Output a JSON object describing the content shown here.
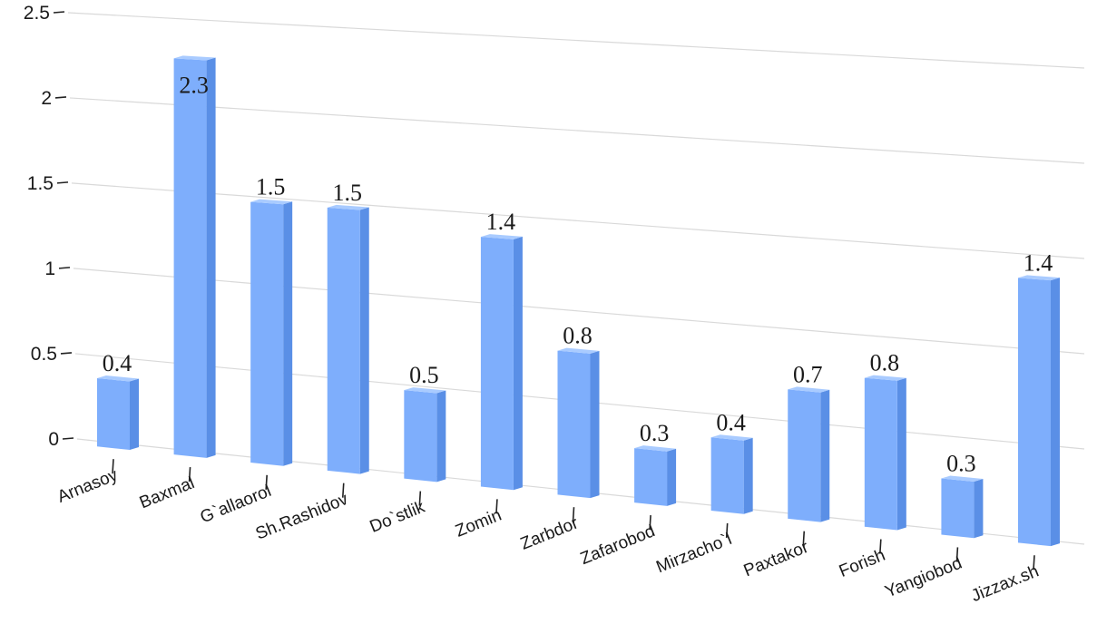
{
  "chart_data": {
    "type": "bar",
    "title": "",
    "xlabel": "",
    "ylabel": "",
    "ylim": [
      0,
      2.5
    ],
    "yticks": [
      "0",
      "0.5",
      "1",
      "1.5",
      "2",
      "2.5"
    ],
    "grid": true,
    "categories": [
      "Arnasoy",
      "Baxmal",
      "G`allaorol",
      "Sh.Rashidov",
      "Do`stlik",
      "Zomin",
      "Zarbdor",
      "Zafarobod",
      "Mirzacho`l",
      "Paxtakor",
      "Forish",
      "Yangiobod",
      "Jizzax.sh"
    ],
    "values": [
      0.4,
      2.3,
      1.5,
      1.5,
      0.5,
      1.4,
      0.8,
      0.3,
      0.4,
      0.7,
      0.8,
      0.3,
      1.4
    ],
    "data_labels": [
      "0.4",
      "2.3",
      "1.5",
      "1.5",
      "0.5",
      "1.4",
      "0.8",
      "0.3",
      "0.4",
      "0.7",
      "0.8",
      "0.3",
      "1.4"
    ],
    "colors": {
      "bar_front": "#7eaefc",
      "bar_side": "#5a8fe6",
      "bar_top": "#a9cbff"
    }
  }
}
